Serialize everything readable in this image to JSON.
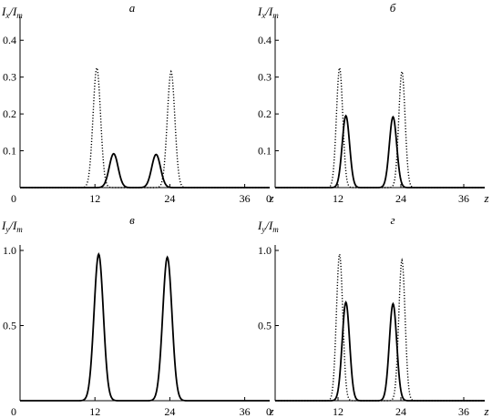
{
  "chart_data": [
    {
      "type": "line",
      "panel_label": "а",
      "ylabel_main": "I",
      "ylabel_sub": "x",
      "ylabel_den": "I",
      "ylabel_den_sub": "m",
      "xlabel": "z",
      "xlim": [
        0,
        40
      ],
      "ylim": [
        0,
        0.45
      ],
      "xticks": [
        0,
        12,
        24,
        36
      ],
      "yticks": [
        0.1,
        0.2,
        0.3,
        0.4
      ],
      "ytick_labels": [
        "0.1",
        "0.2",
        "0.3",
        "0.4"
      ],
      "grid": false,
      "series": [
        {
          "style": "dotted",
          "peaks": [
            {
              "center": 12.3,
              "amp": 0.325,
              "width": 0.85
            },
            {
              "center": 24.2,
              "amp": 0.315,
              "width": 0.85
            }
          ]
        },
        {
          "style": "solid",
          "peaks": [
            {
              "center": 15.0,
              "amp": 0.092,
              "width": 1.0
            },
            {
              "center": 21.8,
              "amp": 0.09,
              "width": 1.0
            }
          ]
        }
      ]
    },
    {
      "type": "line",
      "panel_label": "б",
      "ylabel_main": "I",
      "ylabel_sub": "x",
      "ylabel_den": "I",
      "ylabel_den_sub": "m",
      "xlabel": "z",
      "xlim": [
        0,
        40
      ],
      "ylim": [
        0,
        0.45
      ],
      "xticks": [
        0,
        12,
        24,
        36
      ],
      "yticks": [
        0.1,
        0.2,
        0.3,
        0.4
      ],
      "ytick_labels": [
        "0.1",
        "0.2",
        "0.3",
        "0.4"
      ],
      "grid": false,
      "series": [
        {
          "style": "dotted",
          "peaks": [
            {
              "center": 12.3,
              "amp": 0.325,
              "width": 0.85
            },
            {
              "center": 24.2,
              "amp": 0.315,
              "width": 0.85
            }
          ]
        },
        {
          "style": "solid",
          "peaks": [
            {
              "center": 13.5,
              "amp": 0.195,
              "width": 1.0
            },
            {
              "center": 22.5,
              "amp": 0.192,
              "width": 1.0
            }
          ]
        }
      ]
    },
    {
      "type": "line",
      "panel_label": "в",
      "ylabel_main": "I",
      "ylabel_sub": "y",
      "ylabel_den": "I",
      "ylabel_den_sub": "m",
      "xlabel": "z",
      "xlim": [
        0,
        40
      ],
      "ylim": [
        0,
        1.0
      ],
      "xticks": [
        0,
        12,
        24,
        36
      ],
      "yticks": [
        0.5,
        1.0
      ],
      "ytick_labels": [
        "0.5",
        "1.0"
      ],
      "grid": false,
      "series": [
        {
          "style": "solid",
          "peaks": [
            {
              "center": 12.6,
              "amp": 0.975,
              "width": 1.05
            },
            {
              "center": 23.6,
              "amp": 0.955,
              "width": 1.05
            }
          ]
        }
      ]
    },
    {
      "type": "line",
      "panel_label": "г",
      "ylabel_main": "I",
      "ylabel_sub": "y",
      "ylabel_den": "I",
      "ylabel_den_sub": "m",
      "xlabel": "z",
      "xlim": [
        0,
        40
      ],
      "ylim": [
        0,
        1.0
      ],
      "xticks": [
        0,
        12,
        24,
        36
      ],
      "yticks": [
        0.5,
        1.0
      ],
      "ytick_labels": [
        "0.5",
        "1.0"
      ],
      "grid": false,
      "series": [
        {
          "style": "dotted",
          "peaks": [
            {
              "center": 12.3,
              "amp": 0.975,
              "width": 0.85
            },
            {
              "center": 24.2,
              "amp": 0.935,
              "width": 0.85
            }
          ]
        },
        {
          "style": "solid",
          "peaks": [
            {
              "center": 13.5,
              "amp": 0.655,
              "width": 1.0
            },
            {
              "center": 22.5,
              "amp": 0.645,
              "width": 1.0
            }
          ]
        }
      ]
    }
  ]
}
